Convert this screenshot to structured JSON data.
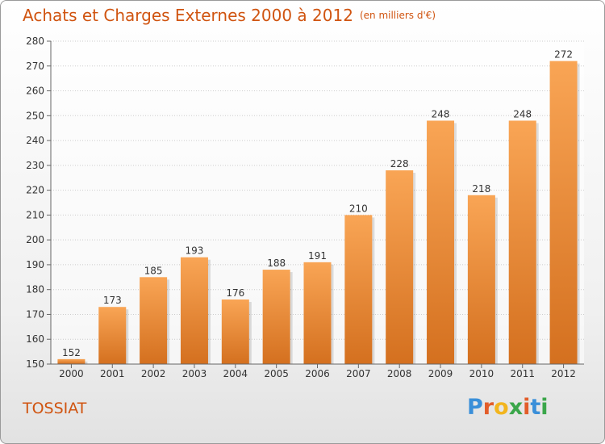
{
  "header": {
    "title": "Achats et Charges Externes 2000 à 2012",
    "subtitle": "(en milliers d'€)"
  },
  "footer": {
    "commune": "TOSSIAT",
    "logo_letters": [
      "P",
      "r",
      "o",
      "x",
      "i",
      "t",
      "i"
    ]
  },
  "colors": {
    "title": "#d05410",
    "bar_top": "#f9a555",
    "bar_bottom": "#d4701f",
    "logo": [
      "#3a8fd9",
      "#e25d2a",
      "#f2b51e",
      "#3aa64a",
      "#e25d2a",
      "#3a8fd9",
      "#3aa64a"
    ]
  },
  "chart_data": {
    "type": "bar",
    "title": "Achats et Charges Externes 2000 à 2012",
    "categories": [
      "2000",
      "2001",
      "2002",
      "2003",
      "2004",
      "2005",
      "2006",
      "2007",
      "2008",
      "2009",
      "2010",
      "2011",
      "2012"
    ],
    "values": [
      152,
      173,
      185,
      193,
      176,
      188,
      191,
      210,
      228,
      248,
      218,
      248,
      272
    ],
    "ylim": [
      150,
      280
    ],
    "yticks": [
      150,
      160,
      170,
      180,
      190,
      200,
      210,
      220,
      230,
      240,
      250,
      260,
      270,
      280
    ],
    "grid": true
  }
}
